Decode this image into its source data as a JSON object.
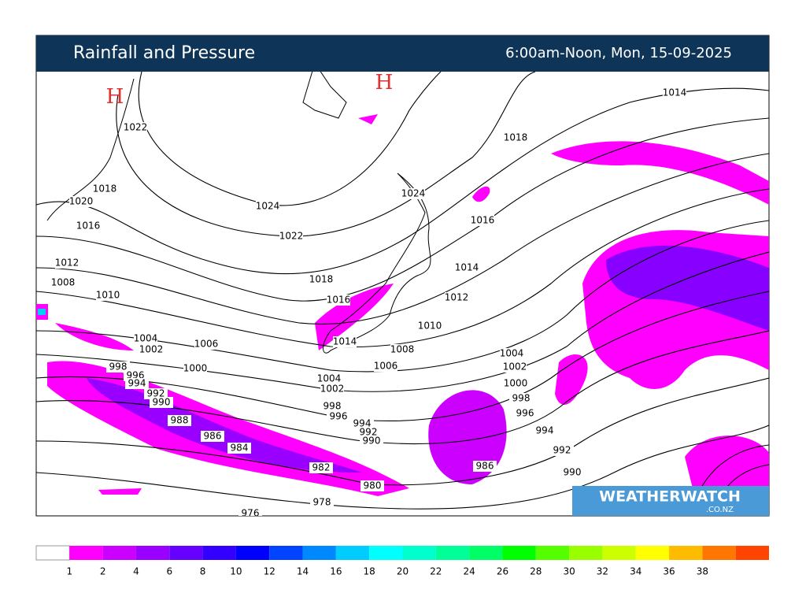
{
  "header": {
    "title": "Rainfall and Pressure",
    "time": "6:00am-Noon, Mon, 15-09-2025"
  },
  "map": {
    "highs": [
      "H",
      "H"
    ],
    "isobar_labels": [
      "1014",
      "1018",
      "1022",
      "1024",
      "1024",
      "1018",
      "1020",
      "1016",
      "1016",
      "1022",
      "1014",
      "1012",
      "1008",
      "1018",
      "1010",
      "1012",
      "1016",
      "1010",
      "1014",
      "1004",
      "1002",
      "1006",
      "1008",
      "1004",
      "998",
      "1000",
      "1006",
      "1002",
      "996",
      "994",
      "1004",
      "1000",
      "992",
      "1002",
      "998",
      "990",
      "998",
      "996",
      "996",
      "988",
      "994",
      "992",
      "994",
      "990",
      "986",
      "984",
      "992",
      "982",
      "986",
      "990",
      "980",
      "978",
      "976"
    ]
  },
  "logo": {
    "name": "WEATHERWATCH",
    "domain": ".CO.NZ"
  },
  "legend": {
    "colors": [
      "#ffffff",
      "#ff00ff",
      "#cc00ff",
      "#9900ff",
      "#6600ff",
      "#3300ff",
      "#0000ff",
      "#0044ff",
      "#0088ff",
      "#00ccff",
      "#00ffff",
      "#00ffcc",
      "#00ff99",
      "#00ff66",
      "#00ff00",
      "#55ff00",
      "#99ff00",
      "#ccff00",
      "#ffff00",
      "#ffbb00",
      "#ff7700",
      "#ff4400"
    ],
    "labels": [
      "1",
      "2",
      "4",
      "6",
      "8",
      "10",
      "12",
      "14",
      "16",
      "18",
      "20",
      "22",
      "24",
      "26",
      "28",
      "30",
      "32",
      "34",
      "36",
      "38"
    ]
  }
}
